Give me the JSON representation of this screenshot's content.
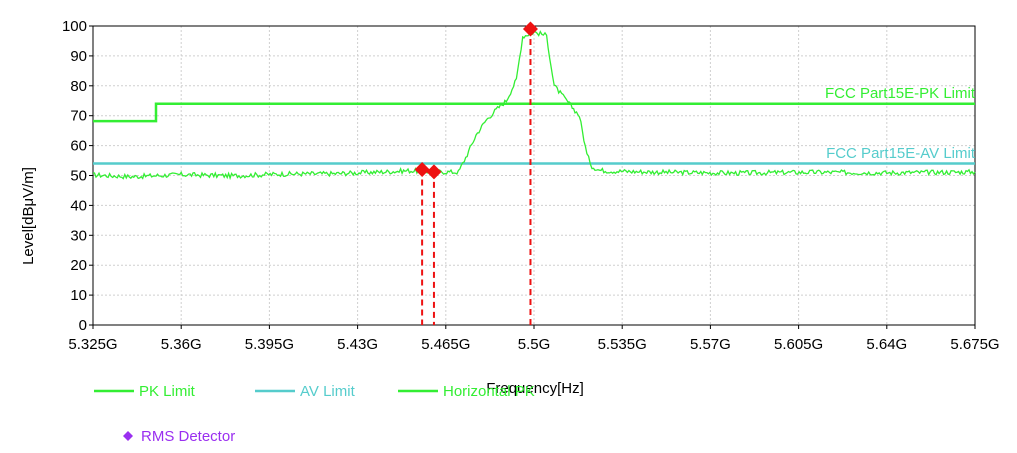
{
  "chart_data": {
    "type": "line",
    "xlabel": "Frequency[Hz]",
    "ylabel": "Level[dBμV/m]",
    "xlim": [
      5.325,
      5.675
    ],
    "ylim": [
      0,
      100
    ],
    "x_ticks": [
      "5.325G",
      "5.36G",
      "5.395G",
      "5.43G",
      "5.465G",
      "5.5G",
      "5.535G",
      "5.57G",
      "5.605G",
      "5.64G",
      "5.675G"
    ],
    "y_ticks": [
      "0",
      "10",
      "20",
      "30",
      "40",
      "50",
      "60",
      "70",
      "80",
      "90",
      "100"
    ],
    "grid": true,
    "limit_labels": {
      "pk": "FCC Part15E-PK Limit",
      "av": "FCC Part15E-AV Limit"
    },
    "series": [
      {
        "name": "PK Limit",
        "color": "#33ee33",
        "x": [
          5.325,
          5.35,
          5.35,
          5.675
        ],
        "y": [
          68.2,
          68.2,
          74,
          74
        ]
      },
      {
        "name": "AV Limit",
        "color": "#55cccc",
        "x": [
          5.325,
          5.675
        ],
        "y": [
          54,
          54
        ]
      },
      {
        "name": "Horizontal PK",
        "color": "#33ee33",
        "x": [
          5.325,
          5.34,
          5.36,
          5.38,
          5.4,
          5.42,
          5.44,
          5.45,
          5.46,
          5.47,
          5.4735,
          5.477,
          5.481,
          5.485,
          5.489,
          5.493,
          5.4955,
          5.5,
          5.505,
          5.508,
          5.511,
          5.514,
          5.518,
          5.521,
          5.523,
          5.526,
          5.53,
          5.55,
          5.58,
          5.61,
          5.64,
          5.675
        ],
        "y": [
          50.2,
          49.6,
          50.3,
          49.9,
          50.5,
          50.6,
          51.2,
          51.6,
          51.3,
          51.1,
          57,
          63.5,
          68.5,
          72,
          75,
          82,
          96.5,
          98,
          96.8,
          80,
          77,
          74,
          70,
          57,
          53,
          51.8,
          51.5,
          51.1,
          50.8,
          51.1,
          50.9,
          51.2
        ]
      }
    ],
    "markers": {
      "name": "RMS Detector",
      "color": "#ee1111",
      "points": [
        {
          "x": 5.4556,
          "y": 52
        },
        {
          "x": 5.4603,
          "y": 51.2
        },
        {
          "x": 5.4986,
          "y": 99
        }
      ]
    },
    "legend": {
      "position": "bottom-left",
      "items": [
        {
          "label": "PK Limit",
          "color": "#33ee33",
          "kind": "line"
        },
        {
          "label": "AV Limit",
          "color": "#55cccc",
          "kind": "line"
        },
        {
          "label": "Horizontal PK",
          "color": "#33ee33",
          "kind": "line"
        },
        {
          "label": "RMS Detector",
          "color": "#9a2ff0",
          "kind": "diamond"
        }
      ]
    }
  }
}
